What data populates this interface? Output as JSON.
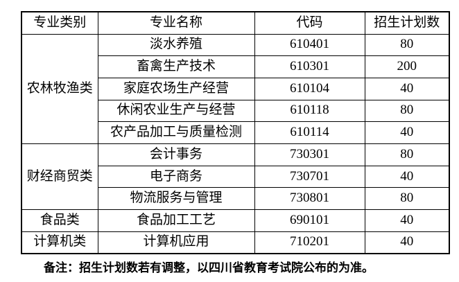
{
  "table": {
    "headers": [
      "专业类别",
      "专业名称",
      "代码",
      "招生计划数"
    ],
    "groups": [
      {
        "category": "农林牧渔类",
        "rows": [
          {
            "major": "淡水养殖",
            "code": "610401",
            "plan": "80"
          },
          {
            "major": "畜禽生产技术",
            "code": "610301",
            "plan": "200"
          },
          {
            "major": "家庭农场生产经营",
            "code": "610104",
            "plan": "40"
          },
          {
            "major": "休闲农业生产与经营",
            "code": "610118",
            "plan": "80"
          },
          {
            "major": "农产品加工与质量检测",
            "code": "610114",
            "plan": "40"
          }
        ]
      },
      {
        "category": "财经商贸类",
        "rows": [
          {
            "major": "会计事务",
            "code": "730301",
            "plan": "80"
          },
          {
            "major": "电子商务",
            "code": "730701",
            "plan": "40"
          },
          {
            "major": "物流服务与管理",
            "code": "730801",
            "plan": "80"
          }
        ]
      },
      {
        "category": "食品类",
        "rows": [
          {
            "major": "食品加工工艺",
            "code": "690101",
            "plan": "40"
          }
        ]
      },
      {
        "category": "计算机类",
        "rows": [
          {
            "major": "计算机应用",
            "code": "710201",
            "plan": "40"
          }
        ]
      }
    ]
  },
  "note": "备注：招生计划数若有调整，以四川省教育考试院公布的为准。"
}
